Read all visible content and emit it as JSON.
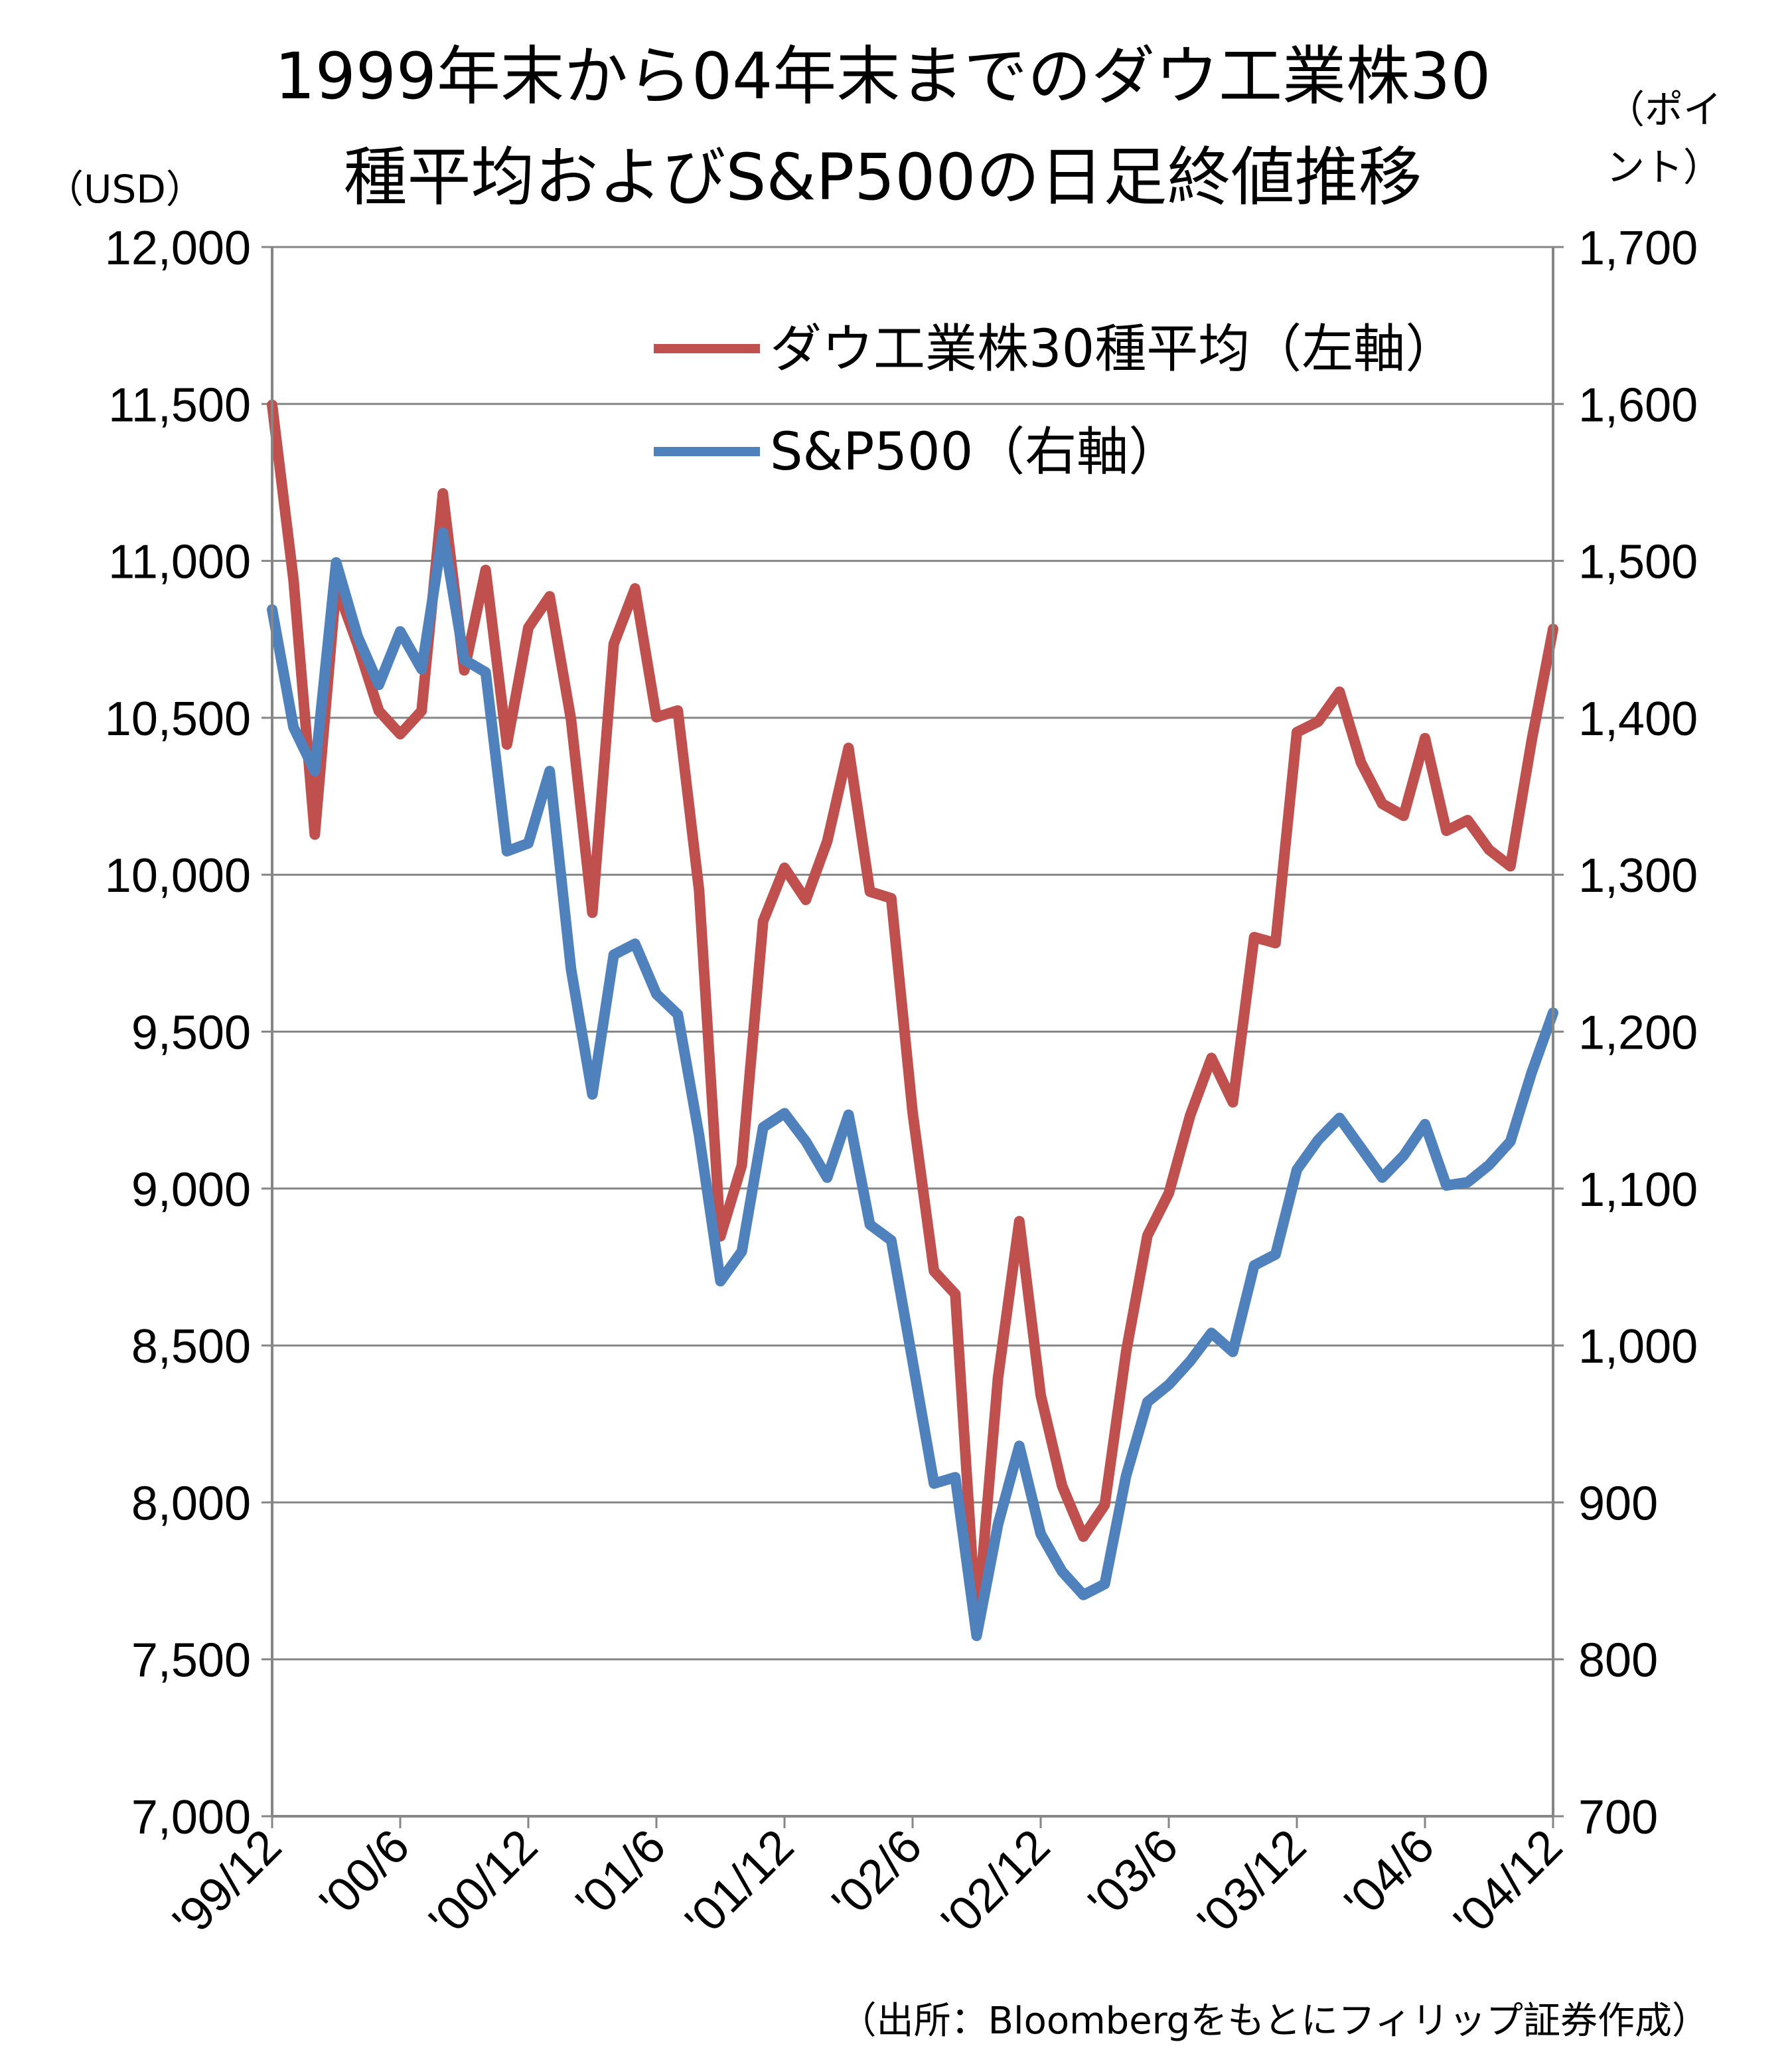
{
  "chart_data": {
    "type": "line",
    "title_lines": [
      "1999年末から04年末までのダウ工業株30",
      "種平均およびS&P500の日足終値推移"
    ],
    "left_unit": "（USD）",
    "right_unit_lines": [
      "（ポイ",
      "ント）"
    ],
    "y_left": {
      "ylim": [
        7000,
        12000
      ],
      "ticks": [
        "12,000",
        "11,500",
        "11,000",
        "10,500",
        "10,000",
        "9,500",
        "9,000",
        "8,500",
        "8,000",
        "7,500",
        "7,000"
      ]
    },
    "y_right": {
      "ylim": [
        700,
        1700
      ],
      "ticks": [
        "1,700",
        "1,600",
        "1,500",
        "1,400",
        "1,300",
        "1,200",
        "1,100",
        "1,000",
        "900",
        "800",
        "700"
      ]
    },
    "x_tick_labels": [
      "'99/12",
      "'00/6",
      "'00/12",
      "'01/6",
      "'01/12",
      "'02/6",
      "'02/12",
      "'03/6",
      "'03/12",
      "'04/6",
      "'04/12"
    ],
    "grid": "horizontal",
    "legend_position": "top-right",
    "series": [
      {
        "name": "ダウ工業株30種平均（左軸）",
        "axis": "left",
        "color": "#c0504d",
        "x": [
          "'99/12",
          "'00/1",
          "'00/2",
          "'00/3",
          "'00/4",
          "'00/5",
          "'00/6",
          "'00/7",
          "'00/8",
          "'00/9",
          "'00/10",
          "'00/11",
          "'00/12",
          "'01/1",
          "'01/2",
          "'01/3",
          "'01/4",
          "'01/5",
          "'01/6",
          "'01/7",
          "'01/8",
          "'01/9",
          "'01/10",
          "'01/11",
          "'01/12",
          "'02/1",
          "'02/2",
          "'02/3",
          "'02/4",
          "'02/5",
          "'02/6",
          "'02/7",
          "'02/8",
          "'02/9",
          "'02/10",
          "'02/11",
          "'02/12",
          "'03/1",
          "'03/2",
          "'03/3",
          "'03/4",
          "'03/5",
          "'03/6",
          "'03/7",
          "'03/8",
          "'03/9",
          "'03/10",
          "'03/11",
          "'03/12",
          "'04/1",
          "'04/2",
          "'04/3",
          "'04/4",
          "'04/5",
          "'04/6",
          "'04/7",
          "'04/8",
          "'04/9",
          "'04/10",
          "'04/11",
          "'04/12"
        ],
        "values": [
          11497,
          10940,
          10128,
          10922,
          10734,
          10522,
          10448,
          10522,
          11215,
          10651,
          10971,
          10415,
          10787,
          10887,
          10495,
          9879,
          10735,
          10912,
          10502,
          10523,
          9950,
          8848,
          9075,
          9852,
          10022,
          9920,
          10106,
          10404,
          9946,
          9925,
          9243,
          8737,
          8664,
          7592,
          8397,
          8896,
          8342,
          8053,
          7891,
          7992,
          8480,
          8850,
          8985,
          9233,
          9416,
          9275,
          9801,
          9782,
          10454,
          10488,
          10583,
          10358,
          10226,
          10188,
          10435,
          10140,
          10174,
          10080,
          10027,
          10428,
          10783
        ]
      },
      {
        "name": "S&P500（右軸）",
        "axis": "right",
        "color": "#4f81bd",
        "x": [
          "'99/12",
          "'00/1",
          "'00/2",
          "'00/3",
          "'00/4",
          "'00/5",
          "'00/6",
          "'00/7",
          "'00/8",
          "'00/9",
          "'00/10",
          "'00/11",
          "'00/12",
          "'01/1",
          "'01/2",
          "'01/3",
          "'01/4",
          "'01/5",
          "'01/6",
          "'01/7",
          "'01/8",
          "'01/9",
          "'01/10",
          "'01/11",
          "'01/12",
          "'02/1",
          "'02/2",
          "'02/3",
          "'02/4",
          "'02/5",
          "'02/6",
          "'02/7",
          "'02/8",
          "'02/9",
          "'02/10",
          "'02/11",
          "'02/12",
          "'03/1",
          "'03/2",
          "'03/3",
          "'03/4",
          "'03/5",
          "'03/6",
          "'03/7",
          "'03/8",
          "'03/9",
          "'03/10",
          "'03/11",
          "'03/12",
          "'04/1",
          "'04/2",
          "'04/3",
          "'04/4",
          "'04/5",
          "'04/6",
          "'04/7",
          "'04/8",
          "'04/9",
          "'04/10",
          "'04/11",
          "'04/12"
        ],
        "values": [
          1469,
          1394,
          1366,
          1499,
          1452,
          1421,
          1455,
          1431,
          1518,
          1437,
          1429,
          1315,
          1320,
          1366,
          1240,
          1160,
          1249,
          1256,
          1224,
          1211,
          1134,
          1041,
          1060,
          1139,
          1148,
          1130,
          1107,
          1147,
          1077,
          1067,
          990,
          912,
          916,
          815,
          886,
          936,
          880,
          856,
          841,
          848,
          917,
          964,
          975,
          990,
          1008,
          996,
          1051,
          1058,
          1112,
          1131,
          1145,
          1126,
          1107,
          1121,
          1141,
          1102,
          1104,
          1115,
          1130,
          1174,
          1212
        ]
      }
    ],
    "source_note": "（出所：Bloombergをもとにフィリップ証券作成）"
  }
}
